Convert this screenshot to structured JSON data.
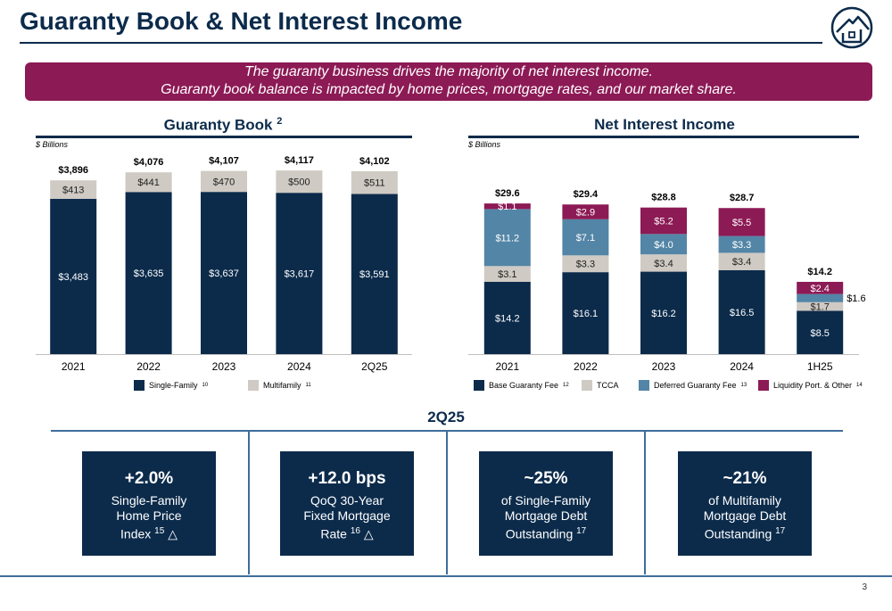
{
  "page": {
    "title": "Guaranty Book & Net Interest Income",
    "banner_line1": "The guaranty business drives the majority of net interest income.",
    "banner_line2": "Guaranty book balance is impacted by home prices, mortgage rates, and our market share.",
    "page_number": "3",
    "period_label": "2Q25"
  },
  "colors": {
    "navy": "#0c2b4b",
    "gray": "#cfcac3",
    "steel": "#5385a6",
    "magenta": "#8c1a55"
  },
  "chart_data": [
    {
      "type": "bar",
      "stacked": true,
      "title": "Guaranty Book",
      "title_superscript": "2",
      "units": "$ Billions",
      "categories": [
        "2021",
        "2022",
        "2023",
        "2024",
        "2Q25"
      ],
      "series": [
        {
          "name": "Single-Family",
          "superscript": "10",
          "values": [
            3483,
            3635,
            3637,
            3617,
            3591
          ],
          "labels": [
            "$3,483",
            "$3,635",
            "$3,637",
            "$3,617",
            "$3,591"
          ]
        },
        {
          "name": "Multifamily",
          "superscript": "11",
          "values": [
            413,
            441,
            470,
            500,
            511
          ],
          "labels": [
            "$413",
            "$441",
            "$470",
            "$500",
            "$511"
          ]
        }
      ],
      "totals": [
        3896,
        4076,
        4107,
        4117,
        4102
      ],
      "total_labels": [
        "$3,896",
        "$4,076",
        "$4,107",
        "$4,117",
        "$4,102"
      ],
      "ylim": [
        0,
        4400
      ],
      "legend_position": "bottom"
    },
    {
      "type": "bar",
      "stacked": true,
      "title": "Net Interest Income",
      "units": "$ Billions",
      "categories": [
        "2021",
        "2022",
        "2023",
        "2024",
        "1H25"
      ],
      "series": [
        {
          "name": "Base Guaranty Fee",
          "superscript": "12",
          "values": [
            14.2,
            16.1,
            16.2,
            16.5,
            8.5
          ],
          "labels": [
            "$14.2",
            "$16.1",
            "$16.2",
            "$16.5",
            "$8.5"
          ]
        },
        {
          "name": "TCCA",
          "superscript": "",
          "values": [
            3.1,
            3.3,
            3.4,
            3.4,
            1.7
          ],
          "labels": [
            "$3.1",
            "$3.3",
            "$3.4",
            "$3.4",
            "$1.7"
          ]
        },
        {
          "name": "Deferred Guaranty Fee",
          "superscript": "13",
          "values": [
            11.2,
            7.1,
            4.0,
            3.3,
            1.6
          ],
          "labels": [
            "$11.2",
            "$7.1",
            "$4.0",
            "$3.3",
            "$1.6"
          ]
        },
        {
          "name": "Liquidity Port. & Other",
          "superscript": "14",
          "values": [
            1.1,
            2.9,
            5.2,
            5.5,
            2.4
          ],
          "labels": [
            "$1.1",
            "$2.9",
            "$5.2",
            "$5.5",
            "$2.4"
          ]
        }
      ],
      "totals": [
        29.6,
        29.4,
        28.8,
        28.7,
        14.2
      ],
      "total_labels": [
        "$29.6",
        "$29.4",
        "$28.8",
        "$28.7",
        "$14.2"
      ],
      "ylim": [
        0,
        34
      ],
      "legend_position": "bottom"
    }
  ],
  "kpis": [
    {
      "value": "+2.0%",
      "desc": "Single-Family\n Home Price\nIndex",
      "sup": "15",
      "arrow": "△"
    },
    {
      "value": "+12.0 bps",
      "desc": "QoQ 30-Year\nFixed Mortgage\nRate",
      "sup": "16",
      "arrow": "△"
    },
    {
      "value": "~25%",
      "desc": "of Single-Family\nMortgage Debt\nOutstanding",
      "sup": "17",
      "arrow": ""
    },
    {
      "value": "~21%",
      "desc": "of Multifamily\nMortgage Debt\nOutstanding",
      "sup": "17",
      "arrow": ""
    }
  ]
}
